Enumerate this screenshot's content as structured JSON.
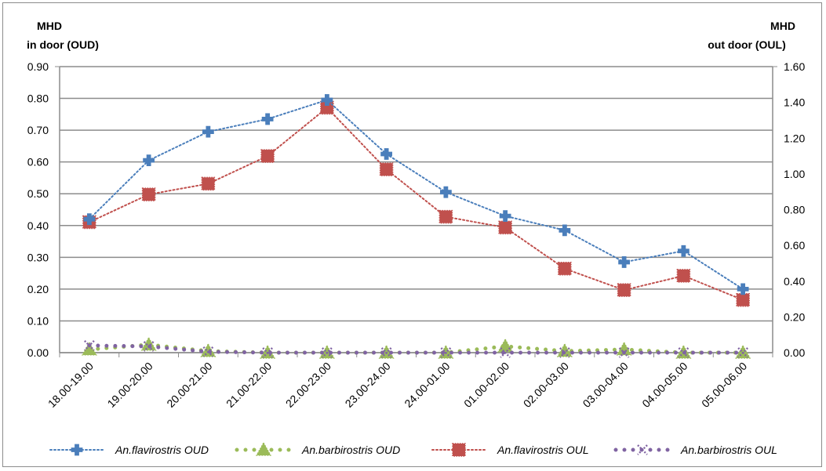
{
  "chart_data": {
    "type": "line",
    "y_left_title_line1": "MHD",
    "y_left_title_line2": "in door (OUD)",
    "y_right_title_line1": "MHD",
    "y_right_title_line2": "out door (OUL)",
    "categories": [
      "18.00-19.00",
      "19.00-20.00",
      "20.00-21.00",
      "21.00-22.00",
      "22.00-23.00",
      "23.00-24.00",
      "24.00-01.00",
      "01.00-02.00",
      "02.00-03.00",
      "03.00-04.00",
      "04.00-05.00",
      "05.00-06.00"
    ],
    "y_left_range": [
      0,
      0.9
    ],
    "y_left_ticks": [
      "0.00",
      "0.10",
      "0.20",
      "0.30",
      "0.40",
      "0.50",
      "0.60",
      "0.70",
      "0.80",
      "0.90"
    ],
    "y_right_range": [
      0,
      1.6
    ],
    "y_right_ticks": [
      "0.00",
      "0.20",
      "0.40",
      "0.60",
      "0.80",
      "1.00",
      "1.20",
      "1.40",
      "1.60"
    ],
    "grid": true,
    "legend_position": "bottom",
    "series": [
      {
        "name": "An.flavirostris OUD",
        "axis": "left",
        "color": "#4a7ebb",
        "marker": "plus",
        "values": [
          0.42,
          0.605,
          0.695,
          0.735,
          0.795,
          0.625,
          0.505,
          0.43,
          0.385,
          0.285,
          0.32,
          0.2
        ]
      },
      {
        "name": "An.barbirostris OUD",
        "axis": "left",
        "color": "#9bbb59",
        "marker": "triangle",
        "values": [
          0.01,
          0.025,
          0.005,
          0.0,
          0.0,
          0.0,
          0.0,
          0.02,
          0.005,
          0.01,
          0.0,
          0.0
        ]
      },
      {
        "name": "An.flavirostris OUL",
        "axis": "right",
        "color": "#c0504d",
        "marker": "square",
        "values": [
          0.73,
          0.885,
          0.945,
          1.1,
          1.37,
          1.025,
          0.76,
          0.7,
          0.47,
          0.35,
          0.43,
          0.295
        ]
      },
      {
        "name": "An.barbirostris OUL",
        "axis": "right",
        "color": "#8064a2",
        "marker": "x",
        "values": [
          0.04,
          0.035,
          0.005,
          0.0,
          0.0,
          0.0,
          0.0,
          0.0,
          0.0,
          0.0,
          0.0,
          0.0
        ]
      }
    ]
  }
}
